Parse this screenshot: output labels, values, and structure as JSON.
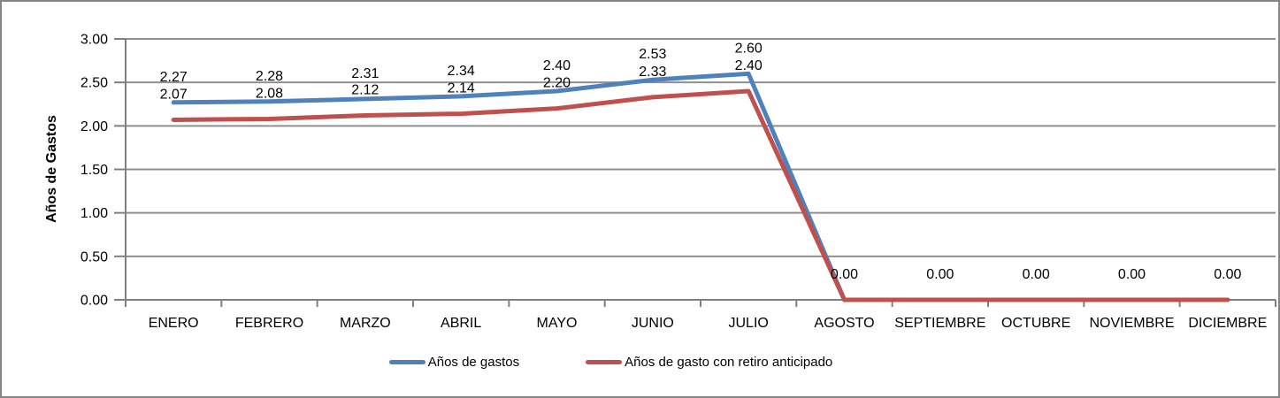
{
  "frame": {
    "background": "#FFFFFF",
    "border_color": "#868686"
  },
  "chart_data": {
    "type": "line",
    "title": "",
    "xlabel": "",
    "ylabel": "Años de Gastos",
    "ylim": [
      0,
      3
    ],
    "ytick_labels": [
      "0.00",
      "0.50",
      "1.00",
      "1.50",
      "2.00",
      "2.50",
      "3.00"
    ],
    "grid": true,
    "legend_position": "bottom",
    "categories": [
      "ENERO",
      "FEBRERO",
      "MARZO",
      "ABRIL",
      "MAYO",
      "JUNIO",
      "JULIO",
      "AGOSTO",
      "SEPTIEMBRE",
      "OCTUBRE",
      "NOVIEMBRE",
      "DICIEMBRE"
    ],
    "series": [
      {
        "name": "Años de gastos",
        "color": "#4F81BD",
        "values": [
          2.27,
          2.28,
          2.31,
          2.34,
          2.4,
          2.53,
          2.6,
          0,
          0,
          0,
          0,
          0
        ],
        "labels": [
          "2.27",
          "2.28",
          "2.31",
          "2.34",
          "2.40",
          "2.53",
          "2.60",
          "0.00",
          "0.00",
          "0.00",
          "0.00",
          "0.00"
        ]
      },
      {
        "name": "Años de gasto con retiro anticipado",
        "color": "#C0504D",
        "values": [
          2.07,
          2.08,
          2.12,
          2.14,
          2.2,
          2.33,
          2.4,
          0,
          0,
          0,
          0,
          0
        ],
        "labels": [
          "2.07",
          "2.08",
          "2.12",
          "2.14",
          "2.20",
          "2.33",
          "2.40",
          null,
          null,
          null,
          null,
          null
        ]
      }
    ],
    "colors": {
      "gridline": "#8F8F8F",
      "axis": "#808080",
      "label_text": "#000000"
    }
  }
}
